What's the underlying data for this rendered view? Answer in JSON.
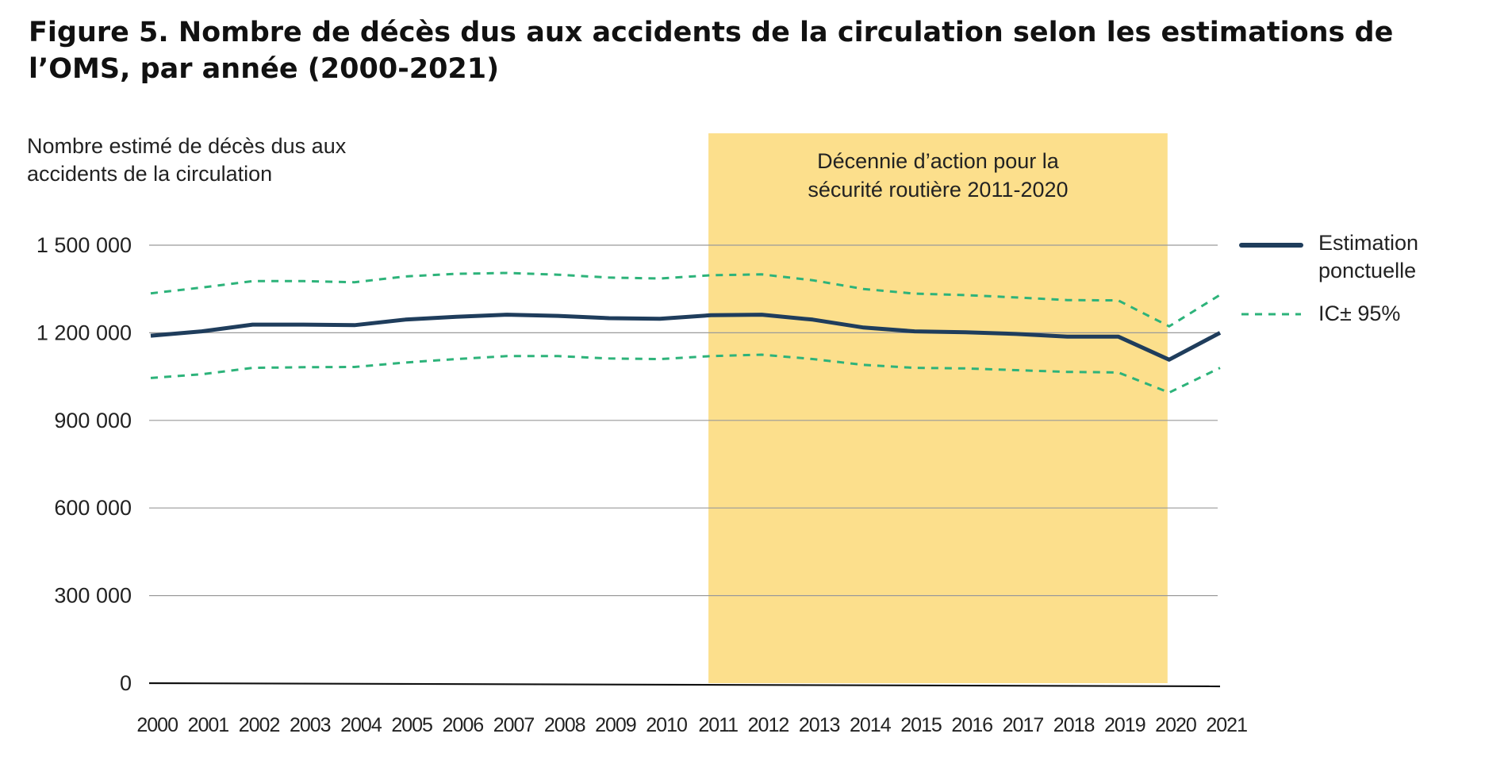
{
  "chart_data": {
    "type": "line",
    "title": "Figure 5. Nombre de décès dus aux accidents de la circulation selon les estimations de l’OMS, par année (2000-2021)",
    "ylabel": "Nombre estimé de décès dus aux accidents de la circulation",
    "xlabel": "",
    "ylim": [
      0,
      1500000
    ],
    "y_ticks": [
      0,
      300000,
      600000,
      900000,
      1200000,
      1500000
    ],
    "y_tick_labels": [
      "0",
      "300 000",
      "600 000",
      "900 000",
      "1 200 000",
      "1 500 000"
    ],
    "grid": true,
    "x": [
      "2000",
      "2001",
      "2002",
      "2003",
      "2004",
      "2005",
      "2006",
      "2007",
      "2008",
      "2009",
      "2010",
      "2011",
      "2012",
      "2013",
      "2014",
      "2015",
      "2016",
      "2017",
      "2018",
      "2019",
      "2020",
      "2021"
    ],
    "series": [
      {
        "name": "Estimation ponctuelle",
        "style": "solid",
        "color": "#1f3d5c",
        "values": [
          1190000,
          1205000,
          1228000,
          1228000,
          1226000,
          1245000,
          1255000,
          1262000,
          1258000,
          1250000,
          1248000,
          1260000,
          1262000,
          1245000,
          1218000,
          1205000,
          1202000,
          1196000,
          1187000,
          1187000,
          1108000,
          1200000
        ]
      },
      {
        "name": "IC± 95%",
        "style": "dashed",
        "color": "#2db37a",
        "values_upper": [
          1335000,
          1355000,
          1377000,
          1377000,
          1373000,
          1393000,
          1402000,
          1405000,
          1399000,
          1389000,
          1386000,
          1397000,
          1400000,
          1380000,
          1350000,
          1334000,
          1329000,
          1321000,
          1312000,
          1311000,
          1222000,
          1330000
        ],
        "values_lower": [
          1045000,
          1058000,
          1080000,
          1082000,
          1083000,
          1098000,
          1110000,
          1120000,
          1120000,
          1112000,
          1110000,
          1120000,
          1125000,
          1110000,
          1090000,
          1080000,
          1078000,
          1072000,
          1066000,
          1064000,
          995000,
          1080000
        ]
      }
    ],
    "annotation": {
      "text_lines": [
        "Décennie d’action pour la",
        "sécurité routière 2011-2020"
      ],
      "from": "2011",
      "to": "2020",
      "color": "#fcdf8c"
    },
    "legend": {
      "position": "right",
      "items": [
        {
          "label_lines": [
            "Estimation",
            "ponctuelle"
          ],
          "style": "solid",
          "color": "#1f3d5c"
        },
        {
          "label_lines": [
            "IC± 95%"
          ],
          "style": "dashed",
          "color": "#2db37a"
        }
      ]
    },
    "colors": {
      "gridline": "#9a9a9a",
      "axis": "#111111"
    }
  }
}
